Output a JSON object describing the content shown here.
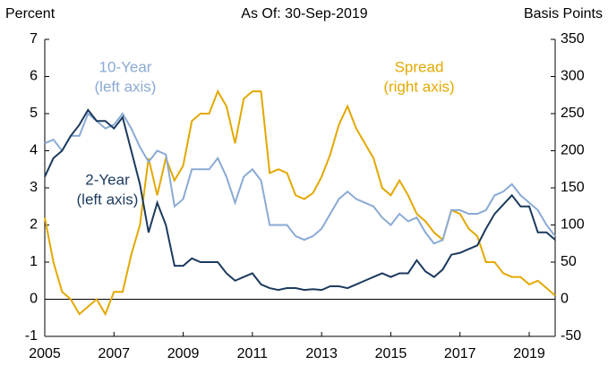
{
  "chart_data": {
    "type": "line",
    "left_axis_label": "Percent",
    "title": "As Of: 30-Sep-2019",
    "right_axis_label": "Basis Points",
    "x": [
      2005,
      2005.25,
      2005.5,
      2005.75,
      2006,
      2006.25,
      2006.5,
      2006.75,
      2007,
      2007.25,
      2007.5,
      2007.75,
      2008,
      2008.25,
      2008.5,
      2008.75,
      2009,
      2009.25,
      2009.5,
      2009.75,
      2010,
      2010.25,
      2010.5,
      2010.75,
      2011,
      2011.25,
      2011.5,
      2011.75,
      2012,
      2012.25,
      2012.5,
      2012.75,
      2013,
      2013.25,
      2013.5,
      2013.75,
      2014,
      2014.25,
      2014.5,
      2014.75,
      2015,
      2015.25,
      2015.5,
      2015.75,
      2016,
      2016.25,
      2016.5,
      2016.75,
      2017,
      2017.25,
      2017.5,
      2017.75,
      2018,
      2018.25,
      2018.5,
      2018.75,
      2019,
      2019.25,
      2019.5,
      2019.75
    ],
    "xlim": [
      2005,
      2019.75
    ],
    "xticks": [
      2005,
      2007,
      2009,
      2011,
      2013,
      2015,
      2017,
      2019
    ],
    "ylim": [
      -1,
      7
    ],
    "yticks": [
      -1,
      0,
      1,
      2,
      3,
      4,
      5,
      6,
      7
    ],
    "y2lim": [
      -50,
      350
    ],
    "y2ticks": [
      -50,
      0,
      50,
      100,
      150,
      200,
      250,
      300,
      350
    ],
    "series": [
      {
        "name": "10-Year",
        "note": "(left axis)",
        "color": "#8aaad4",
        "values": [
          4.2,
          4.3,
          4.0,
          4.4,
          4.4,
          5.0,
          4.8,
          4.6,
          4.7,
          5.0,
          4.6,
          4.1,
          3.7,
          4.0,
          3.9,
          2.5,
          2.7,
          3.5,
          3.5,
          3.5,
          3.8,
          3.3,
          2.6,
          3.3,
          3.5,
          3.2,
          2.0,
          2.0,
          2.0,
          1.7,
          1.6,
          1.7,
          1.9,
          2.3,
          2.7,
          2.9,
          2.7,
          2.6,
          2.5,
          2.2,
          2.0,
          2.3,
          2.1,
          2.2,
          1.8,
          1.5,
          1.6,
          2.4,
          2.4,
          2.3,
          2.3,
          2.4,
          2.8,
          2.9,
          3.1,
          2.8,
          2.6,
          2.4,
          2.0,
          1.7
        ]
      },
      {
        "name": "2-Year",
        "note": "(left axis)",
        "color": "#1b3a5e",
        "values": [
          3.3,
          3.8,
          4.0,
          4.4,
          4.7,
          5.1,
          4.8,
          4.8,
          4.6,
          4.9,
          4.0,
          3.1,
          1.8,
          2.6,
          2.0,
          0.9,
          0.9,
          1.1,
          1.0,
          1.0,
          1.0,
          0.7,
          0.5,
          0.6,
          0.7,
          0.4,
          0.3,
          0.25,
          0.3,
          0.3,
          0.25,
          0.27,
          0.25,
          0.35,
          0.35,
          0.3,
          0.4,
          0.5,
          0.6,
          0.7,
          0.6,
          0.7,
          0.7,
          1.05,
          0.75,
          0.6,
          0.8,
          1.2,
          1.25,
          1.35,
          1.45,
          1.9,
          2.3,
          2.55,
          2.8,
          2.5,
          2.5,
          1.8,
          1.8,
          1.6
        ]
      },
      {
        "name": "Spread",
        "note": "(right axis)",
        "color": "#e3a800",
        "axis": "y2",
        "values": [
          110,
          50,
          10,
          0,
          -20,
          -10,
          0,
          -20,
          10,
          10,
          60,
          100,
          190,
          140,
          190,
          160,
          180,
          240,
          250,
          250,
          280,
          260,
          210,
          270,
          280,
          280,
          170,
          175,
          170,
          140,
          135,
          143,
          165,
          195,
          235,
          260,
          230,
          210,
          190,
          150,
          140,
          160,
          140,
          115,
          105,
          90,
          80,
          120,
          115,
          95,
          85,
          50,
          50,
          35,
          30,
          30,
          20,
          25,
          15,
          5
        ]
      }
    ]
  }
}
